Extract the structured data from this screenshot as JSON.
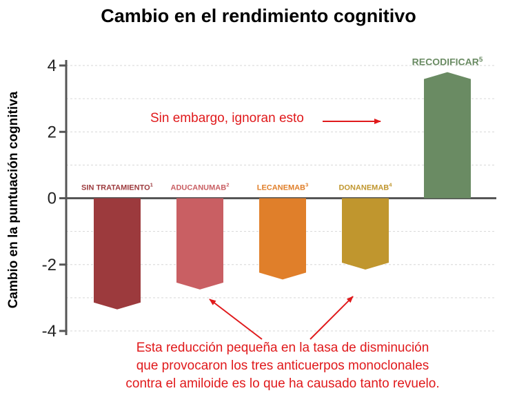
{
  "title": "Cambio en el rendimiento cognitivo",
  "chart_data": {
    "type": "bar",
    "title": "Cambio en el rendimiento cognitivo",
    "xlabel": "",
    "ylabel": "Cambio en la puntuación cognitiva",
    "ylim": [
      -4,
      4
    ],
    "yticks": [
      4,
      2,
      0,
      -2,
      -4
    ],
    "ytick_labels": [
      "4",
      "2",
      "0",
      "-2",
      "-4"
    ],
    "grid": true,
    "categories": [
      {
        "name": "SIN TRATAMIENTO",
        "sup": "1",
        "value": -3.35,
        "color": "#9c3a3d"
      },
      {
        "name": "ADUCANUMAB",
        "sup": "2",
        "value": -2.75,
        "color": "#c95f63"
      },
      {
        "name": "LECANEMAB",
        "sup": "3",
        "value": -2.45,
        "color": "#e07f2a"
      },
      {
        "name": "DONANEMAB",
        "sup": "4",
        "value": -2.15,
        "color": "#c0962e"
      },
      {
        "name": "RECODIFICAR",
        "sup": "5",
        "value": 3.8,
        "color": "#6a8b63"
      }
    ]
  },
  "annotations": {
    "top_note": "Sin embargo, ignoran esto",
    "bottom_note": [
      "Esta reducción pequeña en la tasa de disminución",
      "que provocaron los tres anticuerpos monoclonales",
      "contra el amiloide es lo que ha causado tanto revuelo."
    ],
    "arrow_color": "#e0191b"
  }
}
